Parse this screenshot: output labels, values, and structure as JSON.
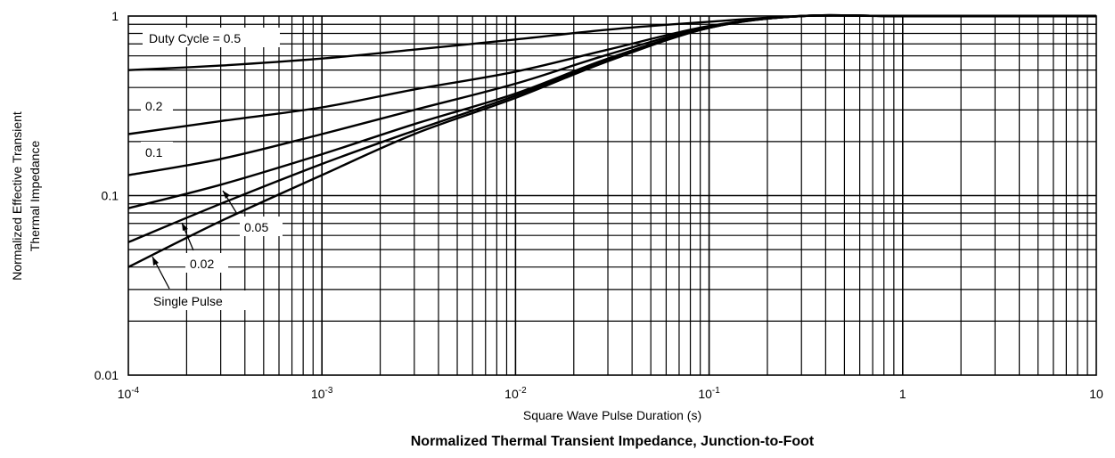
{
  "chart_data": {
    "type": "line",
    "title": "Normalized Thermal Transient Impedance, Junction-to-Foot",
    "xlabel": "Square Wave Pulse Duration (s)",
    "ylabel_lines": [
      "Normalized Effective Transient",
      "Thermal Impedance"
    ],
    "xscale": "log",
    "yscale": "log",
    "xlim": [
      0.0001,
      10
    ],
    "ylim": [
      0.01,
      1
    ],
    "grid": true,
    "x_ticks": [
      {
        "value": 0.0001,
        "base": "10",
        "exp": "-4"
      },
      {
        "value": 0.001,
        "base": "10",
        "exp": "-3"
      },
      {
        "value": 0.01,
        "base": "10",
        "exp": "-2"
      },
      {
        "value": 0.1,
        "base": "10",
        "exp": "-1"
      },
      {
        "value": 1,
        "base": "1",
        "exp": ""
      },
      {
        "value": 10,
        "base": "10",
        "exp": ""
      }
    ],
    "y_ticks": [
      {
        "value": 1,
        "label": "1"
      },
      {
        "value": 0.1,
        "label": "0.1"
      },
      {
        "value": 0.01,
        "label": "0.01"
      }
    ],
    "series": [
      {
        "name": "Duty Cycle = 0.5",
        "x": [
          0.0001,
          0.0003,
          0.001,
          0.003,
          0.01,
          0.03,
          0.1,
          0.3,
          1,
          10
        ],
        "y": [
          0.5,
          0.53,
          0.58,
          0.65,
          0.74,
          0.84,
          0.93,
          1.0,
          1.0,
          1.0
        ]
      },
      {
        "name": "0.2",
        "x": [
          0.0001,
          0.0003,
          0.001,
          0.003,
          0.01,
          0.03,
          0.1,
          0.3,
          1,
          10
        ],
        "y": [
          0.22,
          0.26,
          0.31,
          0.39,
          0.49,
          0.65,
          0.88,
          1.0,
          1.0,
          1.0
        ]
      },
      {
        "name": "0.1",
        "x": [
          0.0001,
          0.0003,
          0.001,
          0.003,
          0.01,
          0.03,
          0.1,
          0.3,
          1,
          10
        ],
        "y": [
          0.13,
          0.16,
          0.22,
          0.3,
          0.42,
          0.61,
          0.87,
          1.0,
          1.0,
          1.0
        ]
      },
      {
        "name": "0.05",
        "x": [
          0.0001,
          0.0003,
          0.001,
          0.003,
          0.01,
          0.03,
          0.1,
          0.3,
          1,
          10
        ],
        "y": [
          0.085,
          0.115,
          0.17,
          0.25,
          0.37,
          0.58,
          0.86,
          1.0,
          1.0,
          1.0
        ]
      },
      {
        "name": "0.02",
        "x": [
          0.0001,
          0.0003,
          0.001,
          0.003,
          0.01,
          0.03,
          0.1,
          0.3,
          1,
          10
        ],
        "y": [
          0.055,
          0.09,
          0.15,
          0.23,
          0.36,
          0.57,
          0.86,
          1.0,
          1.0,
          1.0
        ]
      },
      {
        "name": "Single Pulse",
        "x": [
          0.0001,
          0.0003,
          0.001,
          0.003,
          0.01,
          0.03,
          0.1,
          0.3,
          1,
          10
        ],
        "y": [
          0.04,
          0.072,
          0.13,
          0.22,
          0.35,
          0.56,
          0.86,
          1.0,
          1.0,
          1.0
        ]
      }
    ],
    "labels": [
      "Duty Cycle = 0.5",
      "0.2",
      "0.1",
      "0.05",
      "0.02",
      "Single Pulse"
    ]
  }
}
